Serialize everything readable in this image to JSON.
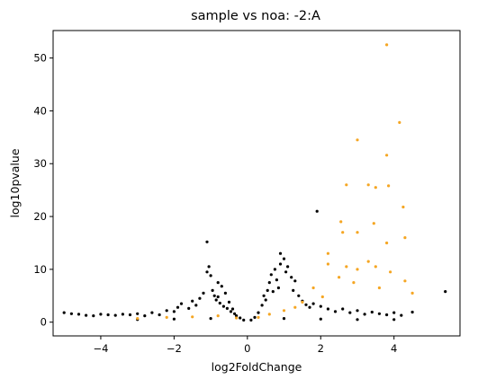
{
  "chart_data": {
    "type": "scatter",
    "title": "sample vs noa: -2:A",
    "xlabel": "log2FoldChange",
    "ylabel": "log10pvalue",
    "xlim": [
      -5.3,
      5.8
    ],
    "ylim": [
      -2.6,
      55.2
    ],
    "xticks": [
      -4,
      -2,
      0,
      2,
      4
    ],
    "yticks": [
      0,
      10,
      20,
      30,
      40,
      50
    ],
    "grid": false,
    "series": [
      {
        "color": "#000000",
        "points": [
          [
            -5.0,
            1.8
          ],
          [
            -4.8,
            1.6
          ],
          [
            -4.6,
            1.5
          ],
          [
            -4.4,
            1.3
          ],
          [
            -4.2,
            1.2
          ],
          [
            -4.0,
            1.5
          ],
          [
            -3.8,
            1.4
          ],
          [
            -3.6,
            1.3
          ],
          [
            -3.4,
            1.5
          ],
          [
            -3.2,
            1.4
          ],
          [
            -3.0,
            1.6
          ],
          [
            -2.8,
            1.2
          ],
          [
            -2.6,
            1.8
          ],
          [
            -2.4,
            1.4
          ],
          [
            -2.2,
            2.2
          ],
          [
            -2.0,
            2.0
          ],
          [
            -1.9,
            2.8
          ],
          [
            -1.8,
            3.5
          ],
          [
            -1.6,
            2.6
          ],
          [
            -1.5,
            4.0
          ],
          [
            -1.4,
            3.2
          ],
          [
            -1.3,
            4.5
          ],
          [
            -1.2,
            5.5
          ],
          [
            -1.1,
            9.5
          ],
          [
            -1.05,
            10.5
          ],
          [
            -1.0,
            8.8
          ],
          [
            -1.1,
            15.2
          ],
          [
            -0.95,
            6.0
          ],
          [
            -0.9,
            5.0
          ],
          [
            -0.85,
            4.2
          ],
          [
            -0.8,
            7.5
          ],
          [
            -0.8,
            4.8
          ],
          [
            -0.75,
            3.6
          ],
          [
            -0.7,
            6.8
          ],
          [
            -0.65,
            3.0
          ],
          [
            -0.6,
            5.5
          ],
          [
            -0.55,
            2.6
          ],
          [
            -0.5,
            3.8
          ],
          [
            -0.45,
            2.0
          ],
          [
            -0.4,
            2.5
          ],
          [
            -0.35,
            1.6
          ],
          [
            -0.3,
            1.2
          ],
          [
            -0.2,
            0.8
          ],
          [
            -0.1,
            0.4
          ],
          [
            0.1,
            0.4
          ],
          [
            0.2,
            0.9
          ],
          [
            0.3,
            1.8
          ],
          [
            0.4,
            3.2
          ],
          [
            0.45,
            5.0
          ],
          [
            0.5,
            4.2
          ],
          [
            0.55,
            6.0
          ],
          [
            0.6,
            7.5
          ],
          [
            0.65,
            9.0
          ],
          [
            0.7,
            5.8
          ],
          [
            0.75,
            10.0
          ],
          [
            0.8,
            8.0
          ],
          [
            0.85,
            6.5
          ],
          [
            0.9,
            11.0
          ],
          [
            0.9,
            13.0
          ],
          [
            1.0,
            12.0
          ],
          [
            1.05,
            9.5
          ],
          [
            1.1,
            10.5
          ],
          [
            1.2,
            8.5
          ],
          [
            1.25,
            6.0
          ],
          [
            1.3,
            7.8
          ],
          [
            1.4,
            5.0
          ],
          [
            1.5,
            4.0
          ],
          [
            1.6,
            3.3
          ],
          [
            1.7,
            2.8
          ],
          [
            1.9,
            21.0
          ],
          [
            1.8,
            3.5
          ],
          [
            2.0,
            3.0
          ],
          [
            2.2,
            2.5
          ],
          [
            2.4,
            2.0
          ],
          [
            2.6,
            2.5
          ],
          [
            2.8,
            1.8
          ],
          [
            3.0,
            2.2
          ],
          [
            3.2,
            1.5
          ],
          [
            3.4,
            1.9
          ],
          [
            3.6,
            1.6
          ],
          [
            3.8,
            1.4
          ],
          [
            4.0,
            1.8
          ],
          [
            4.2,
            1.3
          ],
          [
            4.5,
            1.9
          ],
          [
            5.4,
            5.8
          ],
          [
            -3.0,
            0.5
          ],
          [
            -2.0,
            0.6
          ],
          [
            -1.0,
            0.7
          ],
          [
            1.0,
            0.7
          ],
          [
            2.0,
            0.6
          ],
          [
            3.0,
            0.5
          ],
          [
            4.0,
            0.5
          ]
        ]
      },
      {
        "color": "#f5a623",
        "points": [
          [
            3.8,
            52.5
          ],
          [
            4.15,
            37.8
          ],
          [
            3.0,
            34.5
          ],
          [
            3.8,
            31.6
          ],
          [
            2.7,
            26.0
          ],
          [
            3.3,
            26.0
          ],
          [
            3.85,
            25.8
          ],
          [
            3.5,
            25.5
          ],
          [
            4.25,
            21.8
          ],
          [
            2.55,
            19.0
          ],
          [
            3.45,
            18.7
          ],
          [
            2.6,
            17.0
          ],
          [
            3.0,
            17.0
          ],
          [
            4.3,
            16.0
          ],
          [
            3.8,
            15.0
          ],
          [
            2.2,
            13.0
          ],
          [
            2.2,
            11.0
          ],
          [
            2.7,
            10.5
          ],
          [
            3.3,
            11.5
          ],
          [
            3.0,
            10.0
          ],
          [
            3.5,
            10.5
          ],
          [
            3.9,
            9.5
          ],
          [
            4.3,
            7.8
          ],
          [
            4.5,
            5.5
          ],
          [
            2.5,
            8.5
          ],
          [
            2.9,
            7.5
          ],
          [
            3.6,
            6.5
          ],
          [
            1.8,
            6.5
          ],
          [
            2.05,
            4.8
          ],
          [
            1.5,
            3.8
          ],
          [
            1.3,
            2.8
          ],
          [
            1.0,
            2.2
          ],
          [
            0.6,
            1.5
          ],
          [
            0.3,
            0.9
          ],
          [
            -0.3,
            0.8
          ],
          [
            -0.8,
            1.2
          ],
          [
            -1.5,
            1.0
          ],
          [
            -2.2,
            0.9
          ],
          [
            -3.0,
            0.7
          ]
        ]
      }
    ]
  }
}
